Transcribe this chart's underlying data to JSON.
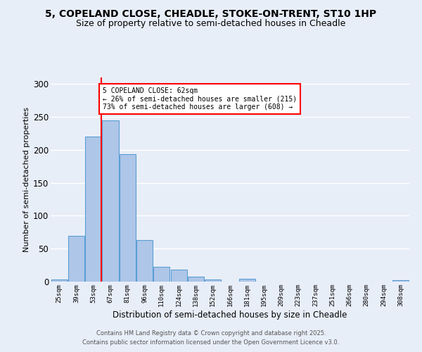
{
  "title1": "5, COPELAND CLOSE, CHEADLE, STOKE-ON-TRENT, ST10 1HP",
  "title2": "Size of property relative to semi-detached houses in Cheadle",
  "xlabel": "Distribution of semi-detached houses by size in Cheadle",
  "ylabel": "Number of semi-detached properties",
  "categories": [
    "25sqm",
    "39sqm",
    "53sqm",
    "67sqm",
    "81sqm",
    "96sqm",
    "110sqm",
    "124sqm",
    "138sqm",
    "152sqm",
    "166sqm",
    "181sqm",
    "195sqm",
    "209sqm",
    "223sqm",
    "237sqm",
    "251sqm",
    "266sqm",
    "280sqm",
    "294sqm",
    "308sqm"
  ],
  "values": [
    3,
    70,
    220,
    245,
    193,
    63,
    22,
    18,
    8,
    3,
    0,
    4,
    0,
    0,
    0,
    0,
    0,
    0,
    0,
    0,
    2
  ],
  "bar_color": "#aec6e8",
  "bar_edge_color": "#5a9fd4",
  "vline_x": 2.48,
  "vline_color": "red",
  "ylim": [
    0,
    310
  ],
  "yticks": [
    0,
    50,
    100,
    150,
    200,
    250,
    300
  ],
  "annotation_title": "5 COPELAND CLOSE: 62sqm",
  "annotation_line2": "← 26% of semi-detached houses are smaller (215)",
  "annotation_line3": "73% of semi-detached houses are larger (608) →",
  "annotation_box_color": "#ffffff",
  "annotation_box_edge": "red",
  "footer1": "Contains HM Land Registry data © Crown copyright and database right 2025.",
  "footer2": "Contains public sector information licensed under the Open Government Licence v3.0.",
  "background_color": "#e8eef8",
  "grid_color": "#ffffff",
  "title_fontsize": 10,
  "subtitle_fontsize": 9
}
